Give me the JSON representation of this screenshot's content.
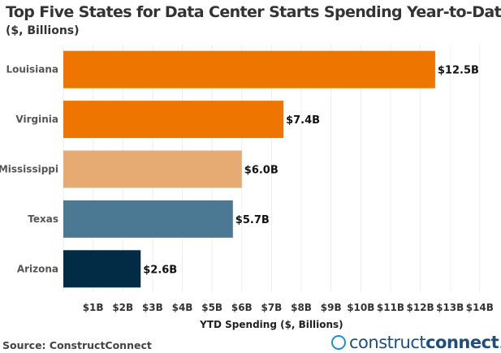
{
  "chart_data": {
    "type": "bar",
    "orientation": "horizontal",
    "title": "Top Five States for Data Center Starts Spending Year-to-Date",
    "subtitle": "($, Billions)",
    "categories": [
      "Louisiana",
      "Virginia",
      "Mississippi",
      "Texas",
      "Arizona"
    ],
    "values": [
      12.5,
      7.4,
      6.0,
      5.7,
      2.6
    ],
    "data_labels": [
      "$12.5B",
      "$7.4B",
      "$6.0B",
      "$5.7B",
      "$2.6B"
    ],
    "colors": [
      "#EE7600",
      "#EE7600",
      "#E5AB72",
      "#4B7892",
      "#022C45"
    ],
    "xlabel": "YTD Spending ($, Billions)",
    "ylabel": "",
    "xticks": [
      1,
      2,
      3,
      4,
      5,
      6,
      7,
      8,
      9,
      10,
      11,
      12,
      13,
      14
    ],
    "xtick_labels": [
      "$1B",
      "$2B",
      "$3B",
      "$4B",
      "$5B",
      "$6B",
      "$7B",
      "$8B",
      "$9B",
      "$10B",
      "$11B",
      "$12B",
      "$13B",
      "$14B"
    ],
    "xlim": [
      0,
      14.25
    ],
    "grid": true
  },
  "footer": {
    "source": "Source: ConstructConnect",
    "logo_text_light": "construct",
    "logo_text_bold": "connect",
    "logo_dot": "."
  }
}
